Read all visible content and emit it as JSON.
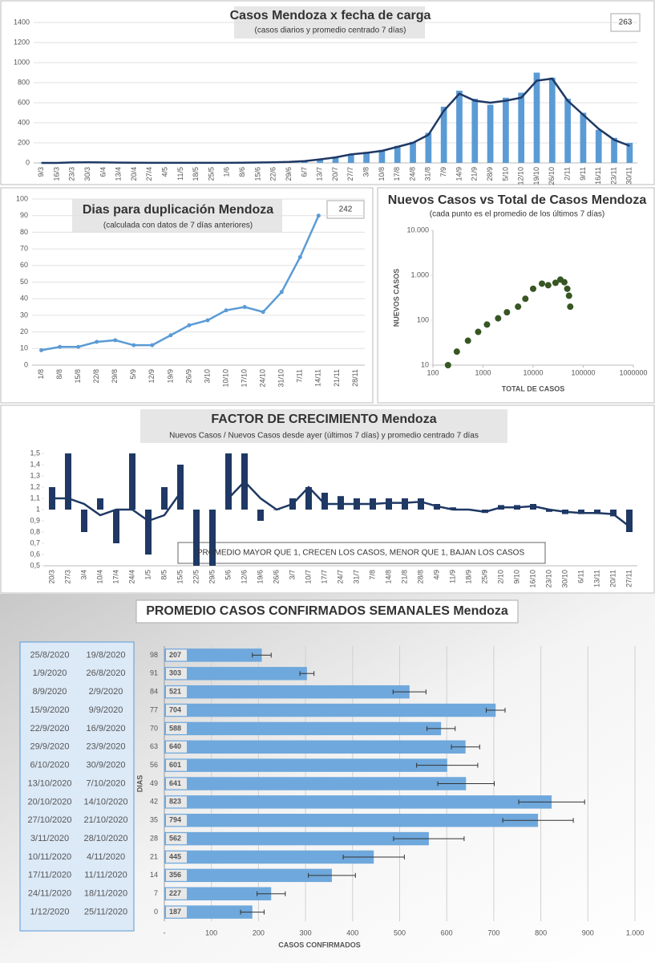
{
  "chart_data": [
    {
      "type": "combo",
      "title": "Casos Mendoza x fecha de carga",
      "subtitle": "(casos diarios y promedio  centrado 7 días)",
      "annotation": "263",
      "grid": true,
      "categories": [
        "9/3",
        "16/3",
        "23/3",
        "30/3",
        "6/4",
        "13/4",
        "20/4",
        "27/4",
        "4/5",
        "11/5",
        "18/5",
        "25/5",
        "1/6",
        "8/6",
        "15/6",
        "22/6",
        "29/6",
        "6/7",
        "13/7",
        "20/7",
        "27/7",
        "3/8",
        "10/8",
        "17/8",
        "24/8",
        "31/8",
        "7/9",
        "14/9",
        "21/9",
        "28/9",
        "5/10",
        "12/10",
        "19/10",
        "26/10",
        "2/11",
        "9/11",
        "16/11",
        "23/11",
        "30/11"
      ],
      "series": [
        {
          "type": "bar",
          "color": "#5b9bd5",
          "values": [
            0,
            0,
            8,
            5,
            6,
            3,
            2,
            1,
            1,
            1,
            1,
            1,
            0,
            3,
            5,
            8,
            12,
            20,
            40,
            60,
            90,
            110,
            130,
            170,
            210,
            300,
            560,
            720,
            640,
            580,
            650,
            700,
            900,
            850,
            640,
            500,
            330,
            250,
            200
          ]
        },
        {
          "type": "line",
          "color": "#1f3864",
          "values": [
            0,
            0,
            5,
            6,
            5,
            3,
            2,
            1,
            1,
            1,
            1,
            1,
            1,
            2,
            4,
            6,
            10,
            18,
            35,
            55,
            85,
            100,
            120,
            160,
            200,
            280,
            520,
            690,
            620,
            600,
            620,
            650,
            820,
            840,
            620,
            480,
            340,
            230,
            170
          ]
        }
      ],
      "ylim": [
        0,
        1400
      ],
      "yticks": [
        0,
        200,
        400,
        600,
        800,
        1000,
        1200,
        1400
      ]
    },
    {
      "type": "line",
      "title": "Dias para duplicación Mendoza",
      "subtitle": "(calculada con datos de 7 días anteriores)",
      "annotation": "242",
      "grid": true,
      "markers": true,
      "categories": [
        "1/8",
        "8/8",
        "15/8",
        "22/8",
        "29/8",
        "5/9",
        "12/9",
        "19/9",
        "26/9",
        "3/10",
        "10/10",
        "17/10",
        "24/10",
        "31/10",
        "7/11",
        "14/11",
        "21/11",
        "28/11"
      ],
      "series": [
        {
          "type": "line",
          "color": "#5b9bd5",
          "values": [
            9,
            11,
            11,
            14,
            15,
            12,
            12,
            18,
            24,
            27,
            33,
            35,
            32,
            44,
            65,
            90,
            null,
            null
          ]
        }
      ],
      "ylim": [
        0,
        100
      ],
      "yticks": [
        0,
        10,
        20,
        30,
        40,
        50,
        60,
        70,
        80,
        90,
        100
      ]
    },
    {
      "type": "scatter",
      "title": "Nuevos Casos vs Total de Casos Mendoza",
      "subtitle": "(cada punto es el promedio de los últimos 7 días)",
      "x_label": "TOTAL DE CASOS",
      "y_label": "NUEVOS CASOS",
      "log_x": true,
      "log_y": true,
      "color": "#375623",
      "x": [
        200,
        300,
        500,
        800,
        1200,
        2000,
        3000,
        5000,
        7000,
        10000,
        15000,
        20000,
        28000,
        35000,
        42000,
        48000,
        52000,
        55000
      ],
      "y": [
        10,
        20,
        35,
        55,
        80,
        110,
        150,
        200,
        300,
        500,
        650,
        600,
        680,
        800,
        700,
        500,
        350,
        200
      ],
      "xlim": [
        100,
        1000000
      ],
      "xticks": [
        100,
        1000,
        10000,
        100000,
        1000000
      ],
      "ylim": [
        10,
        10000
      ],
      "yticks": [
        10,
        100,
        {
          "value": 1000,
          "label": "1.000"
        },
        {
          "value": 10000,
          "label": "10.000"
        }
      ]
    },
    {
      "type": "combo",
      "title": "FACTOR DE CRECIMIENTO Mendoza",
      "subtitle": "Nuevos Casos  / Nuevos Casos desde ayer (últimos 7 días) y promedio  centrado 7 días",
      "annotation": "PROMEDIO MAYOR QUE 1, CRECEN LOS CASOS, MENOR QUE 1, BAJAN LOS CASOS",
      "grid": false,
      "baseline": 1,
      "categories": [
        "20/3",
        "27/3",
        "3/4",
        "10/4",
        "17/4",
        "24/4",
        "1/5",
        "8/5",
        "15/5",
        "22/5",
        "29/5",
        "5/6",
        "12/6",
        "19/6",
        "26/6",
        "3/7",
        "10/7",
        "17/7",
        "24/7",
        "31/7",
        "7/8",
        "14/8",
        "21/8",
        "28/8",
        "4/9",
        "11/9",
        "18/9",
        "25/9",
        "2/10",
        "9/10",
        "16/10",
        "23/10",
        "30/10",
        "6/11",
        "13/11",
        "20/11",
        "27/11"
      ],
      "series": [
        {
          "type": "bar",
          "color": "#1f3864",
          "values": [
            1.2,
            1.5,
            0.8,
            1.1,
            0.7,
            1.5,
            0.6,
            1.2,
            1.4,
            0.5,
            0.5,
            1.5,
            1.5,
            0.9,
            1.0,
            1.1,
            1.2,
            1.15,
            1.12,
            1.1,
            1.1,
            1.1,
            1.1,
            1.1,
            1.05,
            1.02,
            1.0,
            0.97,
            1.04,
            1.04,
            1.05,
            0.98,
            0.96,
            0.96,
            0.96,
            0.94,
            0.8
          ]
        },
        {
          "type": "line",
          "color": "#1f3864",
          "values": [
            1.1,
            1.1,
            1.05,
            0.95,
            1.0,
            1.0,
            0.9,
            0.95,
            1.15,
            null,
            null,
            1.1,
            1.25,
            1.1,
            1.0,
            1.05,
            1.2,
            1.05,
            1.05,
            1.05,
            1.05,
            1.06,
            1.06,
            1.07,
            1.03,
            1.0,
            1.0,
            0.98,
            1.02,
            1.02,
            1.03,
            1.0,
            0.98,
            0.97,
            0.97,
            0.96,
            0.85
          ]
        }
      ],
      "ylim": [
        0.5,
        1.5
      ],
      "yticks": [
        {
          "value": 0.5,
          "label": "0,5"
        },
        {
          "value": 0.6,
          "label": "0,6"
        },
        {
          "value": 0.7,
          "label": "0,7"
        },
        {
          "value": 0.8,
          "label": "0,8"
        },
        {
          "value": 0.9,
          "label": "0,9"
        },
        1,
        {
          "value": 1.1,
          "label": "1,1"
        },
        {
          "value": 1.2,
          "label": "1,2"
        },
        {
          "value": 1.3,
          "label": "1,3"
        },
        {
          "value": 1.4,
          "label": "1,4"
        },
        {
          "value": 1.5,
          "label": "1,5"
        }
      ]
    },
    {
      "type": "hbar",
      "title": "PROMEDIO CASOS CONFIRMADOS SEMANALES Mendoza",
      "x_label": "CASOS CONFIRMADOS",
      "y_label": "DIAS",
      "color": "#6fa8dc",
      "grid": true,
      "categories": [
        "98",
        "91",
        "84",
        "77",
        "70",
        "63",
        "56",
        "49",
        "42",
        "35",
        "28",
        "21",
        "14",
        "7",
        "0"
      ],
      "values": [
        207,
        303,
        521,
        704,
        588,
        640,
        601,
        641,
        823,
        794,
        562,
        445,
        356,
        227,
        187
      ],
      "errors": [
        20,
        15,
        35,
        20,
        30,
        30,
        65,
        60,
        70,
        75,
        75,
        65,
        50,
        30,
        25
      ],
      "xlim": [
        0,
        1000
      ],
      "xticks": [
        {
          "value": 0,
          "label": "-"
        },
        100,
        200,
        300,
        400,
        500,
        600,
        700,
        800,
        900,
        {
          "value": 1000,
          "label": "1.000"
        }
      ]
    }
  ],
  "table": {
    "rows": [
      [
        "25/8/2020",
        "19/8/2020"
      ],
      [
        "1/9/2020",
        "26/8/2020"
      ],
      [
        "8/9/2020",
        "2/9/2020"
      ],
      [
        "15/9/2020",
        "9/9/2020"
      ],
      [
        "22/9/2020",
        "16/9/2020"
      ],
      [
        "29/9/2020",
        "23/9/2020"
      ],
      [
        "6/10/2020",
        "30/9/2020"
      ],
      [
        "13/10/2020",
        "7/10/2020"
      ],
      [
        "20/10/2020",
        "14/10/2020"
      ],
      [
        "27/10/2020",
        "21/10/2020"
      ],
      [
        "3/11/2020",
        "28/10/2020"
      ],
      [
        "10/11/2020",
        "4/11/2020"
      ],
      [
        "17/11/2020",
        "11/11/2020"
      ],
      [
        "24/11/2020",
        "18/11/2020"
      ],
      [
        "1/12/2020",
        "25/11/2020"
      ]
    ]
  }
}
